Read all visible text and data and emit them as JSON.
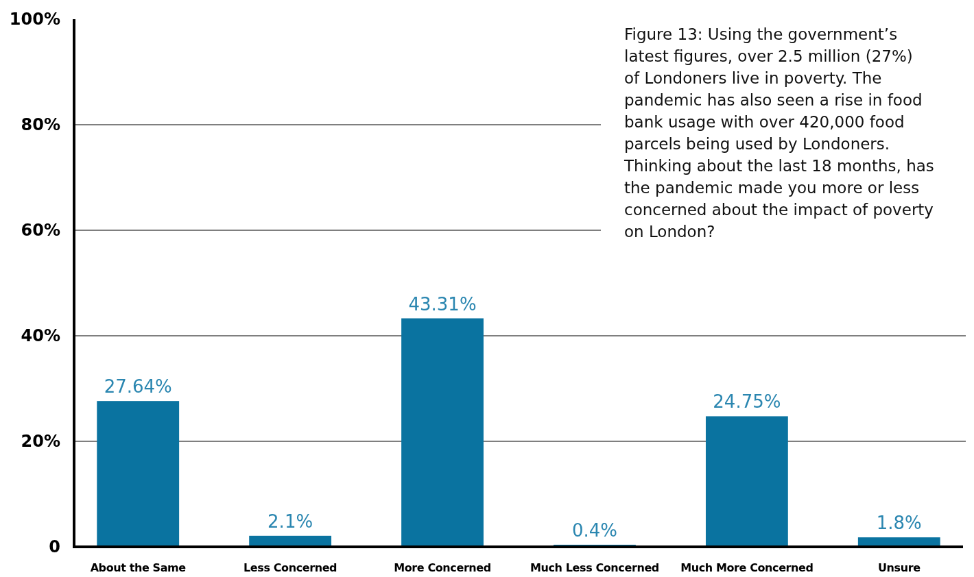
{
  "chart_data": {
    "type": "bar",
    "categories": [
      "About the Same",
      "Less Concerned",
      "More Concerned",
      "Much Less Concerned",
      "Much More Concerned",
      "Unsure"
    ],
    "values": [
      27.64,
      2.1,
      43.31,
      0.4,
      24.75,
      1.8
    ],
    "color": "#0a73a0",
    "value_labels": [
      "27.64%",
      "2.1%",
      "43.31%",
      "0.4%",
      "24.75%",
      "1.8%"
    ],
    "ylim": [
      0,
      100
    ],
    "yticks": [
      {
        "value": 0,
        "label": "0"
      },
      {
        "value": 20,
        "label": "20%"
      },
      {
        "value": 40,
        "label": "40%"
      },
      {
        "value": 60,
        "label": "60%"
      },
      {
        "value": 80,
        "label": "80%"
      },
      {
        "value": 100,
        "label": "100%"
      }
    ],
    "grid": "y",
    "annotations": [
      "Figure 13: Using the government’s latest figures, over 2.5 million (27%) of Londoners live in poverty. The pandemic has also seen a rise in food bank usage with over 420,000 food parcels being used by Londoners. Thinking about the last 18 months, has the pandemic made you more or less concerned about the impact of poverty on London?"
    ]
  }
}
